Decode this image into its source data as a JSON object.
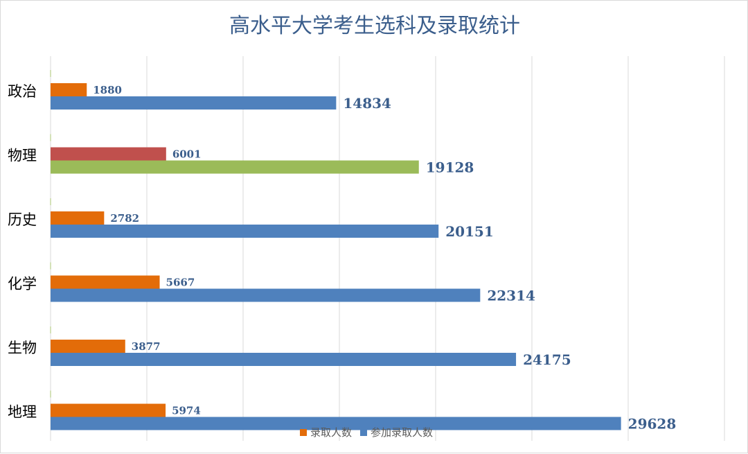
{
  "chart_data": {
    "type": "bar",
    "orientation": "horizontal",
    "title": "高水平大学考生选科及录取统计",
    "categories": [
      "政治",
      "物理",
      "历史",
      "化学",
      "生物",
      "地理"
    ],
    "series": [
      {
        "name": "录取人数",
        "color": "#e36c09",
        "values": [
          1880,
          6001,
          2782,
          5667,
          3877,
          5974
        ],
        "point_colors": [
          null,
          "#c0504d",
          null,
          null,
          null,
          null
        ]
      },
      {
        "name": "参加录取人数",
        "color": "#4f81bd",
        "values": [
          14834,
          19128,
          20151,
          22314,
          24175,
          29628
        ],
        "point_colors": [
          null,
          "#9bbb59",
          null,
          null,
          null,
          null
        ]
      }
    ],
    "xlim": [
      0,
      35000
    ],
    "x_grid_step": 5000,
    "grid": true,
    "x_tick_labels_shown": false,
    "legend_position": "bottom"
  }
}
